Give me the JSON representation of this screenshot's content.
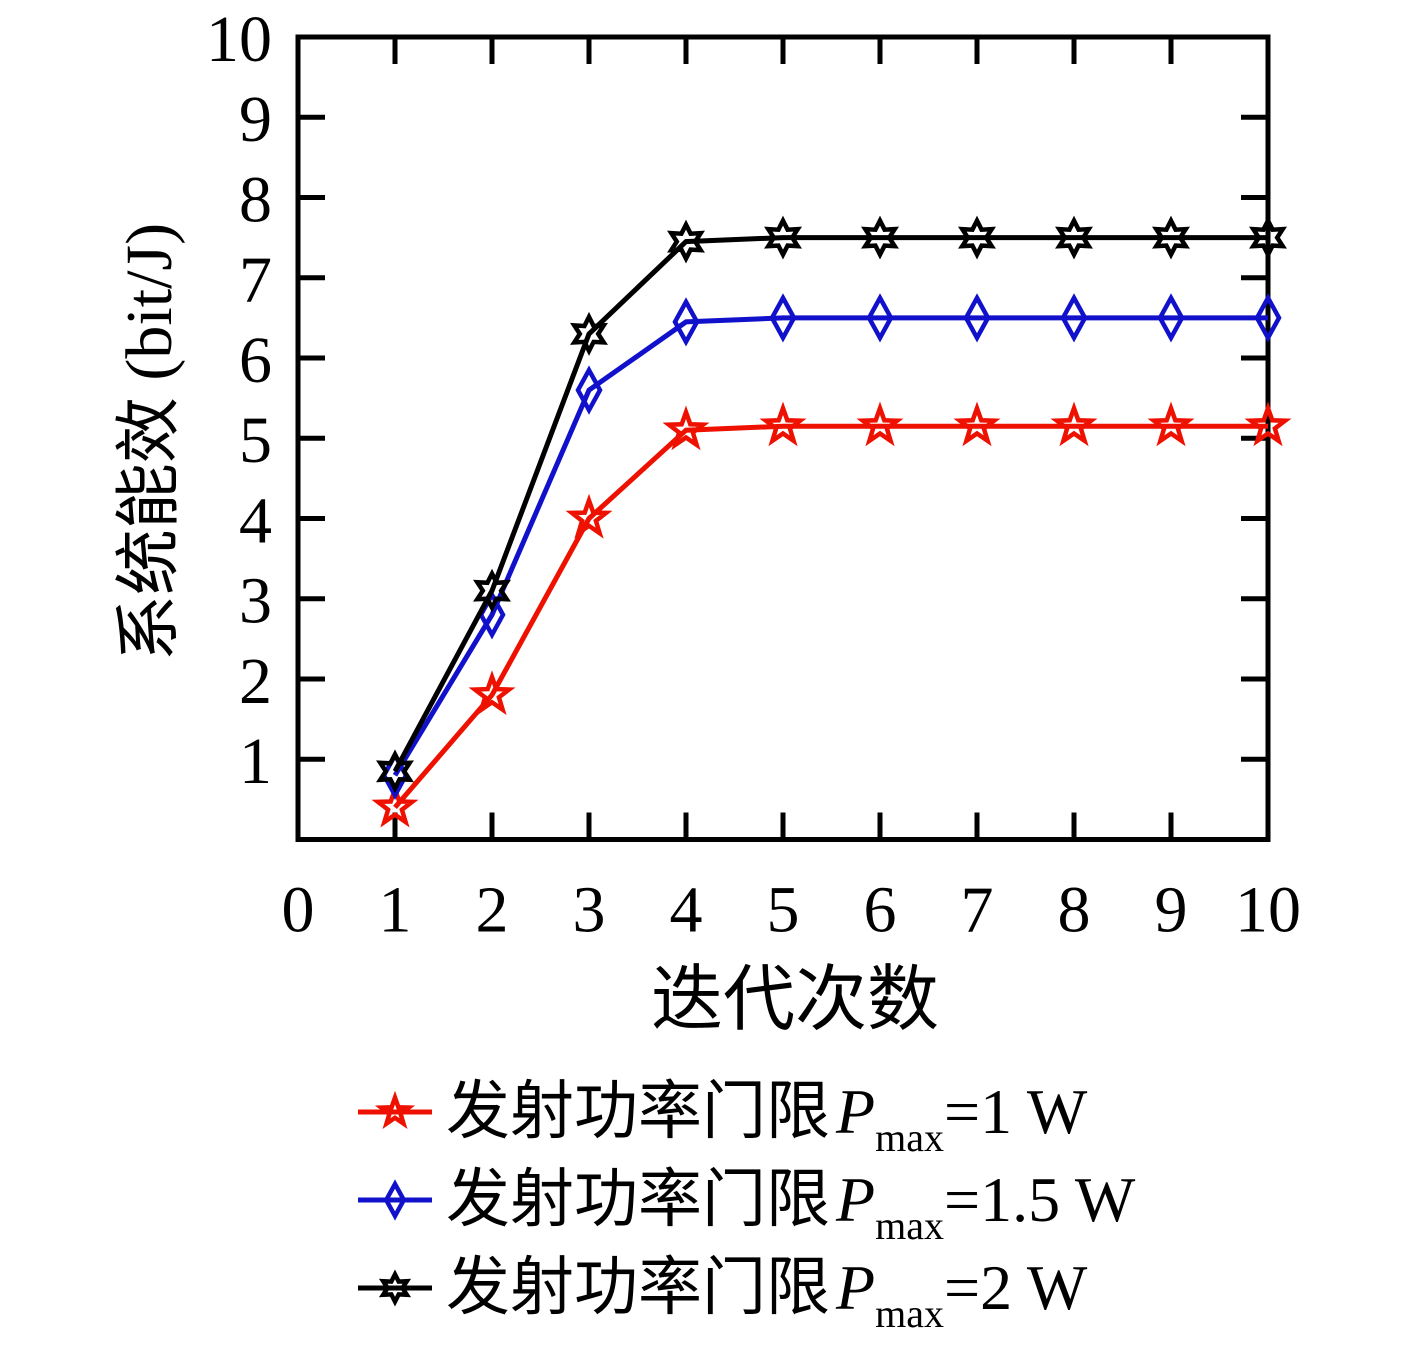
{
  "figure": {
    "background": "#ffffff"
  },
  "chart_data": {
    "type": "line",
    "title": "",
    "xlabel": "迭代次数",
    "ylabel": "系统能效 (bit/J)",
    "xlim": [
      0,
      10
    ],
    "ylim": [
      0,
      10
    ],
    "grid": false,
    "legend_position": "below",
    "axis_color": "#000000",
    "x_ticks": [
      0,
      1,
      2,
      3,
      4,
      5,
      6,
      7,
      8,
      9,
      10
    ],
    "y_ticks": [
      1,
      2,
      3,
      4,
      5,
      6,
      7,
      8,
      9,
      10
    ],
    "x": [
      1,
      2,
      3,
      4,
      5,
      6,
      7,
      8,
      9,
      10
    ],
    "series": [
      {
        "name": "发射功率门限Pmax=1 W",
        "color": "#ee1100",
        "marker": "star5",
        "values": [
          0.4,
          1.8,
          4.0,
          5.1,
          5.15,
          5.15,
          5.15,
          5.15,
          5.15,
          5.15
        ]
      },
      {
        "name": "发射功率门限Pmax=1.5 W",
        "color": "#1111cc",
        "marker": "diamond",
        "values": [
          0.8,
          2.8,
          5.6,
          6.45,
          6.5,
          6.5,
          6.5,
          6.5,
          6.5,
          6.5
        ]
      },
      {
        "name": "发射功率门限Pmax=2 W",
        "color": "#000000",
        "marker": "star6",
        "values": [
          0.85,
          3.1,
          6.3,
          7.45,
          7.5,
          7.5,
          7.5,
          7.5,
          7.5,
          7.5
        ]
      }
    ]
  },
  "legend": {
    "items": [
      {
        "prefix": "发射功率门限",
        "symbol": "P",
        "subscript": "max",
        "suffix": "=1 W"
      },
      {
        "prefix": "发射功率门限",
        "symbol": "P",
        "subscript": "max",
        "suffix": "=1.5 W"
      },
      {
        "prefix": "发射功率门限",
        "symbol": "P",
        "subscript": "max",
        "suffix": "=2 W"
      }
    ]
  }
}
